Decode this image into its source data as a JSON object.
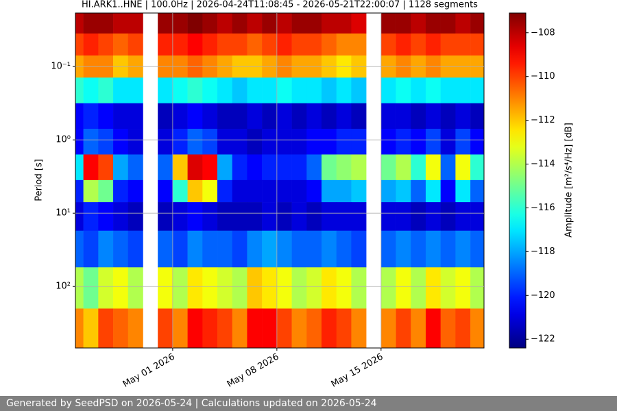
{
  "chart_data": {
    "type": "spectrogram",
    "title": "HI.ARK1..HNE | 100.0Hz | 2026-04-24T11:08:45 - 2026-05-21T22:00:07 | 1128 segments",
    "ylabel": "Period [s]",
    "clabel": "Amplitude [m²/s⁴/Hz] [dB]",
    "colormap": "jet",
    "ylog": true,
    "grid": true,
    "xlim": [
      "2026-04-24T11:08:45",
      "2026-05-21T22:00:07"
    ],
    "xticks": [
      {
        "value": "2026-05-01",
        "label": "May 01 2026"
      },
      {
        "value": "2026-05-08",
        "label": "May 08 2026"
      },
      {
        "value": "2026-05-15",
        "label": "May 15 2026"
      }
    ],
    "ylim": [
      0.0186,
      690
    ],
    "yticks": [
      {
        "value": 0.1,
        "label": "10⁻¹"
      },
      {
        "value": 1,
        "label": "10⁰"
      },
      {
        "value": 10,
        "label": "10¹"
      },
      {
        "value": 100,
        "label": "10²"
      }
    ],
    "clim": [
      -122.4,
      -107.1
    ],
    "cticks": [
      {
        "value": -122,
        "label": "−122"
      },
      {
        "value": -120,
        "label": "−120"
      },
      {
        "value": -118,
        "label": "−118"
      },
      {
        "value": -116,
        "label": "−116"
      },
      {
        "value": -114,
        "label": "−114"
      },
      {
        "value": -112,
        "label": "−112"
      },
      {
        "value": -110,
        "label": "−110"
      },
      {
        "value": -108,
        "label": "−108"
      }
    ],
    "x": [
      "2026-04-24",
      "2026-04-25",
      "2026-04-26",
      "2026-04-27",
      "2026-04-28",
      "2026-04-29",
      "2026-04-30",
      "2026-05-01",
      "2026-05-02",
      "2026-05-03",
      "2026-05-04",
      "2026-05-05",
      "2026-05-06",
      "2026-05-07",
      "2026-05-08",
      "2026-05-09",
      "2026-05-10",
      "2026-05-11",
      "2026-05-12",
      "2026-05-13",
      "2026-05-14",
      "2026-05-15",
      "2026-05-16",
      "2026-05-17",
      "2026-05-18",
      "2026-05-19",
      "2026-05-20",
      "2026-05-21"
    ],
    "y": [
      0.025,
      0.05,
      0.1,
      0.2,
      0.5,
      1,
      2.5,
      5,
      10,
      30,
      100,
      400
    ],
    "values": [
      [
        -108,
        -107.5,
        -107.5,
        -108,
        -108,
        null,
        -107.5,
        -107.5,
        -107,
        -107.5,
        -108,
        -107.5,
        -108,
        -107.5,
        -108,
        -107.5,
        -107.5,
        -108,
        -108,
        -108.5,
        null,
        -107.5,
        -107.5,
        -108,
        -107.5,
        -107.5,
        -108,
        -107.5
      ],
      [
        -110,
        -109.5,
        -110,
        -110.5,
        -110,
        null,
        -109.5,
        -109.5,
        -109,
        -109.5,
        -110,
        -110,
        -110.5,
        -110,
        -109.5,
        -110,
        -110,
        -110.5,
        -111,
        -111,
        null,
        -110,
        -109.5,
        -110,
        -109.5,
        -110,
        -110,
        -110
      ],
      [
        -111.5,
        -111,
        -111,
        -112,
        -111.5,
        null,
        -111,
        -111,
        -110.5,
        -111,
        -111.5,
        -112,
        -112,
        -111.5,
        -111,
        -111.5,
        -111.5,
        -112,
        -112.5,
        -112,
        null,
        -111.5,
        -111,
        -111.5,
        -111,
        -111.5,
        -111.5,
        -111.5
      ],
      [
        -116,
        -116.5,
        -116,
        -117,
        -117,
        null,
        -117,
        -116.5,
        -116,
        -116.5,
        -117,
        -117.5,
        -117,
        -117,
        -116.5,
        -117,
        -117,
        -117.5,
        -117,
        -117.5,
        null,
        -117,
        -116.5,
        -117,
        -116.5,
        -117,
        -117,
        -117
      ],
      [
        -120.5,
        -120,
        -120.5,
        -121,
        -121,
        null,
        -121.5,
        -121,
        -120.5,
        -121,
        -121.5,
        -121.5,
        -121,
        -121.5,
        -121,
        -121.5,
        -121,
        -121.5,
        -121,
        -121.5,
        null,
        -121,
        -121,
        -121.5,
        -121,
        -121.5,
        -121,
        -121.5
      ],
      [
        -120.5,
        -119,
        -119.5,
        -120.5,
        -121,
        null,
        -121,
        -120,
        -119,
        -119.5,
        -121,
        -121,
        -121.5,
        -121,
        -121,
        -121,
        -120.5,
        -120.5,
        -120,
        -120,
        null,
        -120.5,
        -120,
        -120.5,
        -119.5,
        -121,
        -119.5,
        -120.5
      ],
      [
        -117,
        -109,
        -110,
        -118,
        -119,
        null,
        -119,
        -112,
        -108.5,
        -109,
        -118,
        -120,
        -120.5,
        -120,
        -120,
        -120,
        -119,
        -115,
        -114.5,
        -114,
        null,
        -115,
        -114,
        -116,
        -113,
        -119,
        -113,
        -116
      ],
      [
        -120,
        -114,
        -115,
        -120,
        -120.5,
        null,
        -120.5,
        -116,
        -112,
        -113,
        -120,
        -121,
        -121,
        -121,
        -121,
        -121,
        -120.5,
        -118,
        -118,
        -117.5,
        null,
        -118,
        -117.5,
        -119,
        -117,
        -120.5,
        -117,
        -119
      ],
      [
        -121,
        -120,
        -120.5,
        -121,
        -121.5,
        null,
        -121.5,
        -121,
        -120.5,
        -121,
        -121.5,
        -121.5,
        -121.5,
        -121,
        -121.5,
        -121,
        -121.5,
        -121,
        -121,
        -121,
        null,
        -121,
        -121,
        -121.5,
        -121,
        -121.5,
        -121,
        -121
      ],
      [
        -119,
        -119.5,
        -118.5,
        -119,
        -119.5,
        null,
        -119,
        -119.5,
        -118.5,
        -119,
        -119,
        -119.5,
        -118.5,
        -118,
        -118.5,
        -119,
        -119,
        -118.5,
        -119,
        -119.5,
        null,
        -119,
        -118.5,
        -119,
        -118.5,
        -119,
        -118.5,
        -119
      ],
      [
        -114,
        -115,
        -113.5,
        -113,
        -114,
        null,
        -113,
        -114,
        -112.5,
        -113,
        -113.5,
        -114,
        -112,
        -112.5,
        -113,
        -114,
        -113.5,
        -112.5,
        -113,
        -114,
        null,
        -114,
        -113,
        -114,
        -112.5,
        -113.5,
        -113,
        -114
      ],
      [
        -111,
        -112,
        -110,
        -110.5,
        -111,
        null,
        -110,
        -111,
        -109,
        -109.5,
        -110,
        -111,
        -109,
        -109,
        -110,
        -111,
        -110.5,
        -109.5,
        -110,
        -111,
        null,
        -111,
        -110,
        -111,
        -109,
        -110.5,
        -110,
        -111
      ]
    ]
  },
  "footer": "Generated by SeedPSD on 2026-05-24 | Calculations updated on 2026-05-24"
}
